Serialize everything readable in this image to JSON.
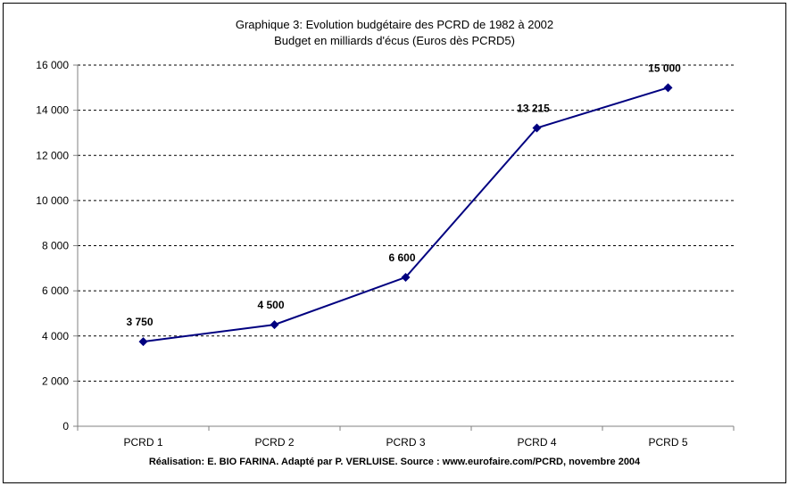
{
  "chart_data": {
    "type": "line",
    "title": "Graphique 3: Evolution budgétaire des PCRD de 1982 à 2002",
    "subtitle": "Budget en milliards d'écus (Euros dès PCRD5)",
    "footer": "Réalisation: E. BIO FARINA. Adapté par P. VERLUISE. Source : www.eurofaire.com/PCRD, novembre 2004",
    "categories": [
      "PCRD 1",
      "PCRD 2",
      "PCRD 3",
      "PCRD 4",
      "PCRD 5"
    ],
    "series": [
      {
        "values": [
          3750,
          4500,
          6600,
          13215,
          15000
        ]
      }
    ],
    "data_labels": [
      "3 750",
      "4 500",
      "6 600",
      "13 215",
      "15 000"
    ],
    "y_ticks": [
      0,
      2000,
      4000,
      6000,
      8000,
      10000,
      12000,
      14000,
      16000
    ],
    "y_tick_labels": [
      "0",
      "2 000",
      "4 000",
      "6 000",
      "8 000",
      "10 000",
      "12 000",
      "14 000",
      "16 000"
    ],
    "ylim": [
      0,
      16000
    ],
    "grid": true,
    "xlabel": "",
    "ylabel": "",
    "colors": {
      "line": "#000080",
      "marker": "#000080",
      "grid": "#000000",
      "axis": "#808080"
    }
  }
}
